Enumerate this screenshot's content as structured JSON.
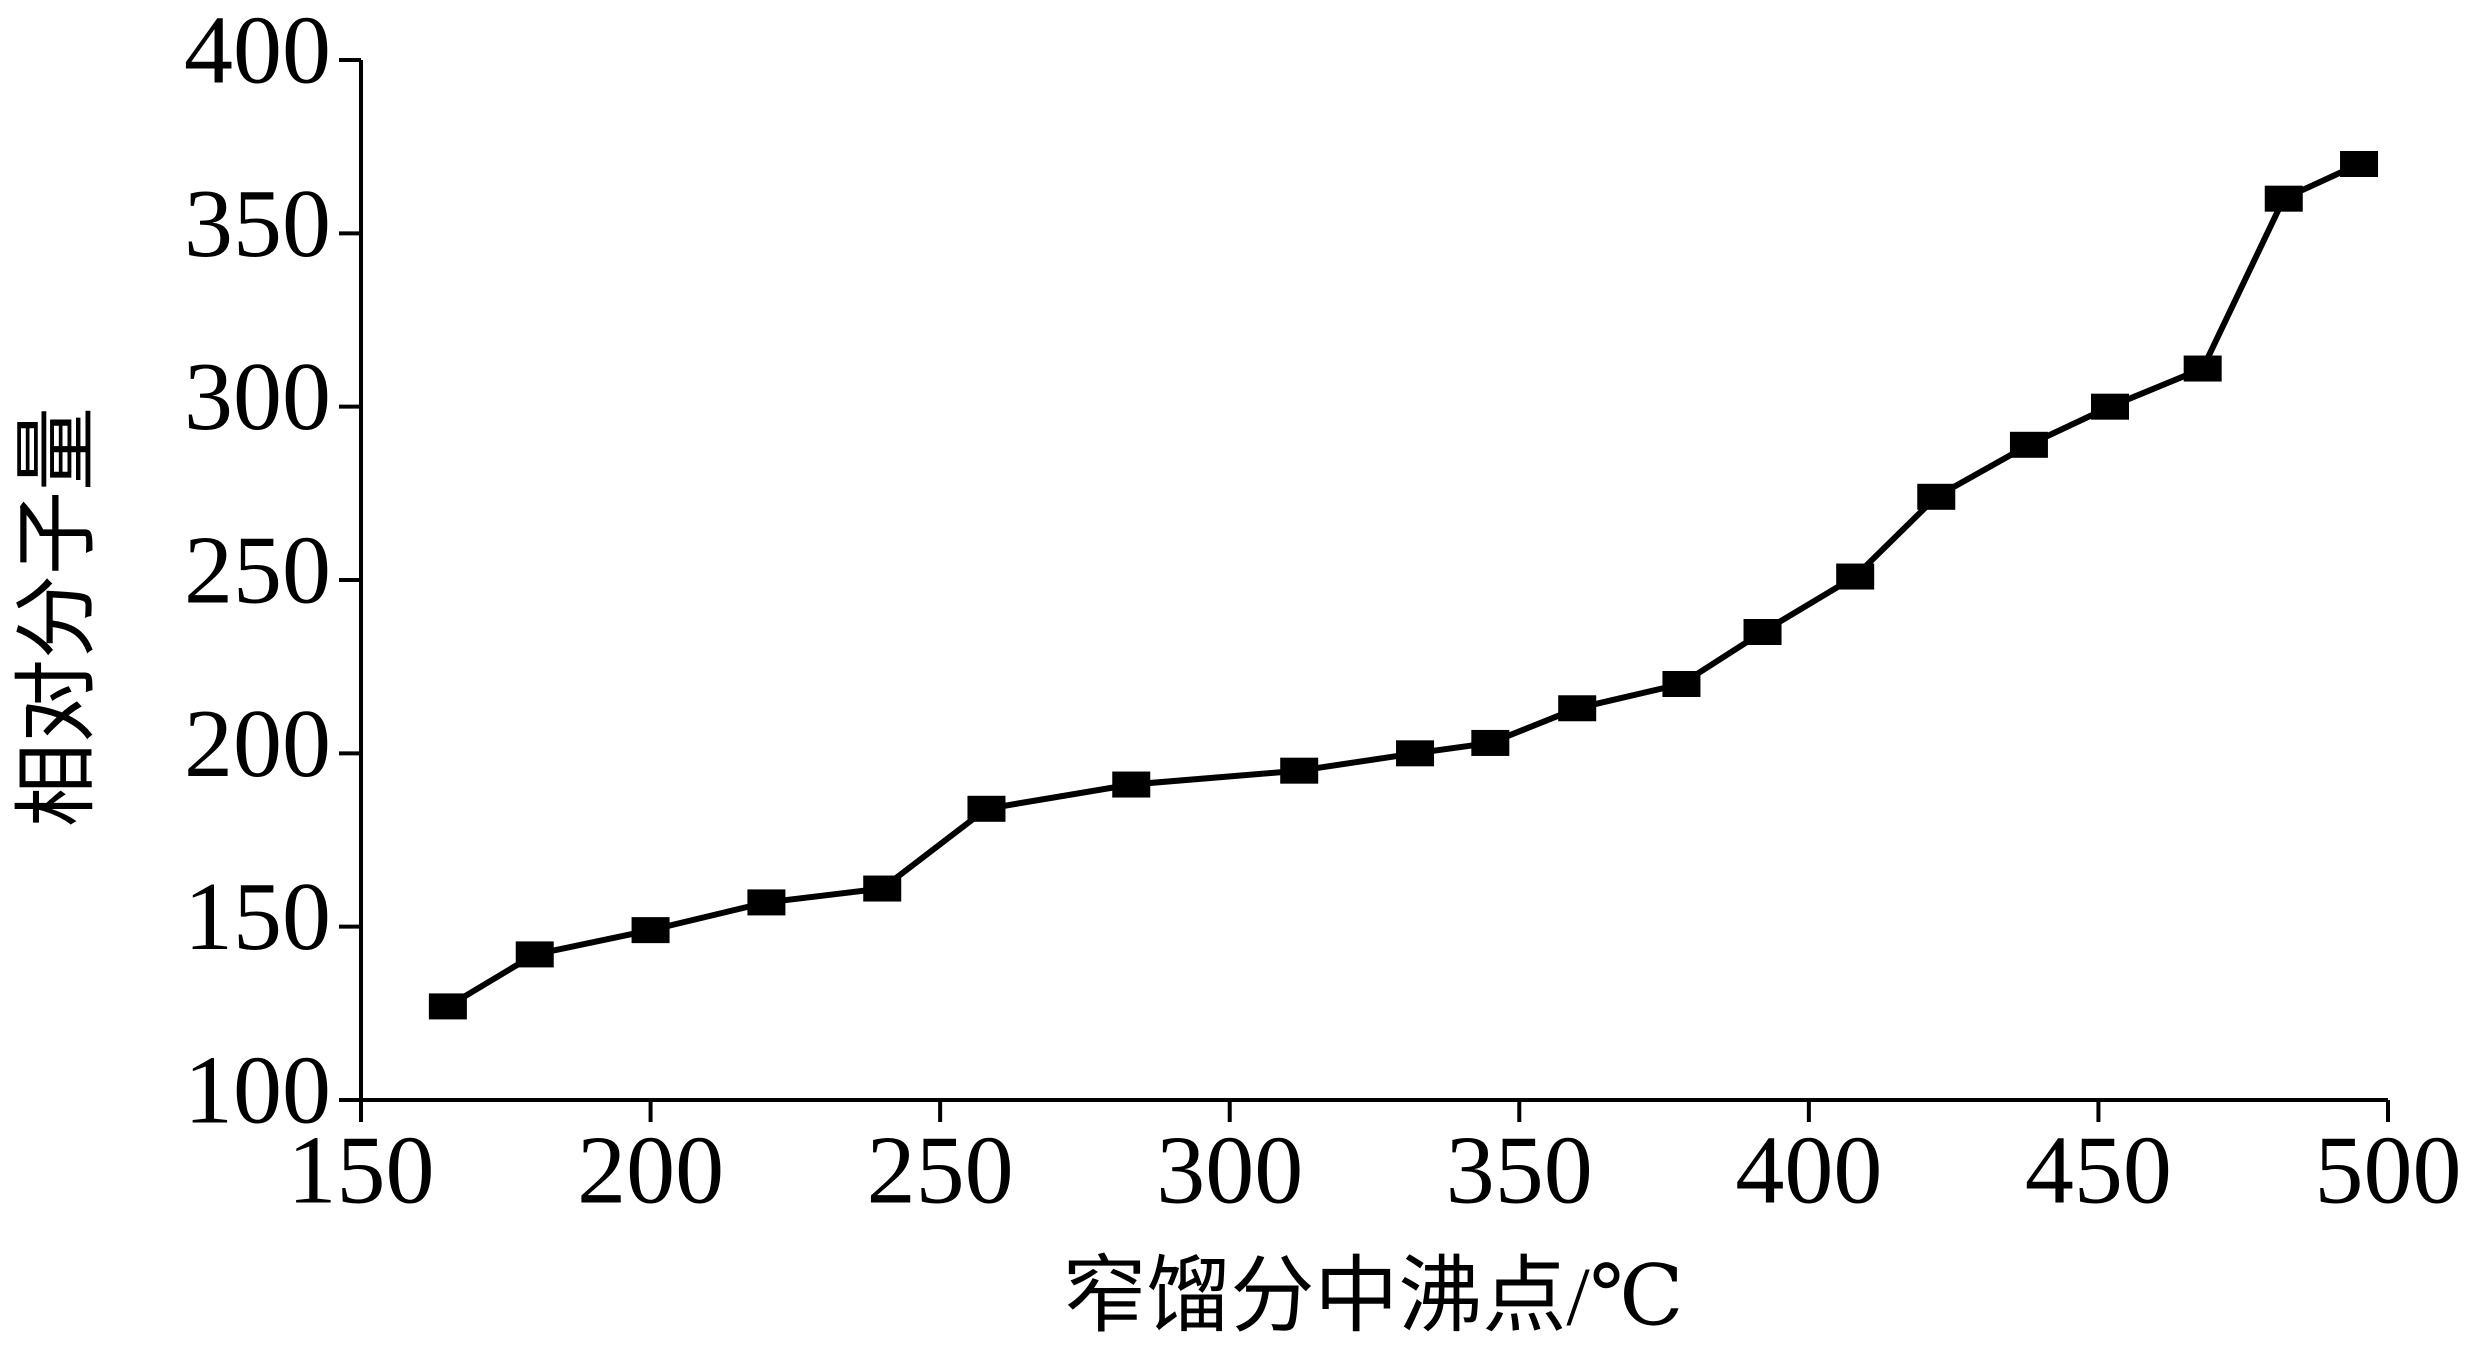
{
  "chart_data": {
    "type": "line",
    "x_label": "窄馏分中沸点/℃",
    "y_label": "相对分子量",
    "x": [
      165,
      180,
      200,
      220,
      240,
      258,
      283,
      312,
      332,
      345,
      360,
      378,
      392,
      408,
      422,
      438,
      452,
      468,
      482,
      495
    ],
    "series": [
      {
        "color": "#000000",
        "values": [
          127,
          142,
          149,
          157,
          161,
          184,
          191,
          195,
          200,
          203,
          213,
          220,
          235,
          251,
          274,
          289,
          300,
          311,
          360,
          370
        ]
      }
    ],
    "xlim": [
      150,
      500
    ],
    "xticks": [
      150,
      200,
      250,
      300,
      350,
      400,
      450,
      500
    ],
    "ylim": [
      100,
      400
    ],
    "yticks": [
      100,
      150,
      200,
      250,
      300,
      350,
      400
    ]
  }
}
